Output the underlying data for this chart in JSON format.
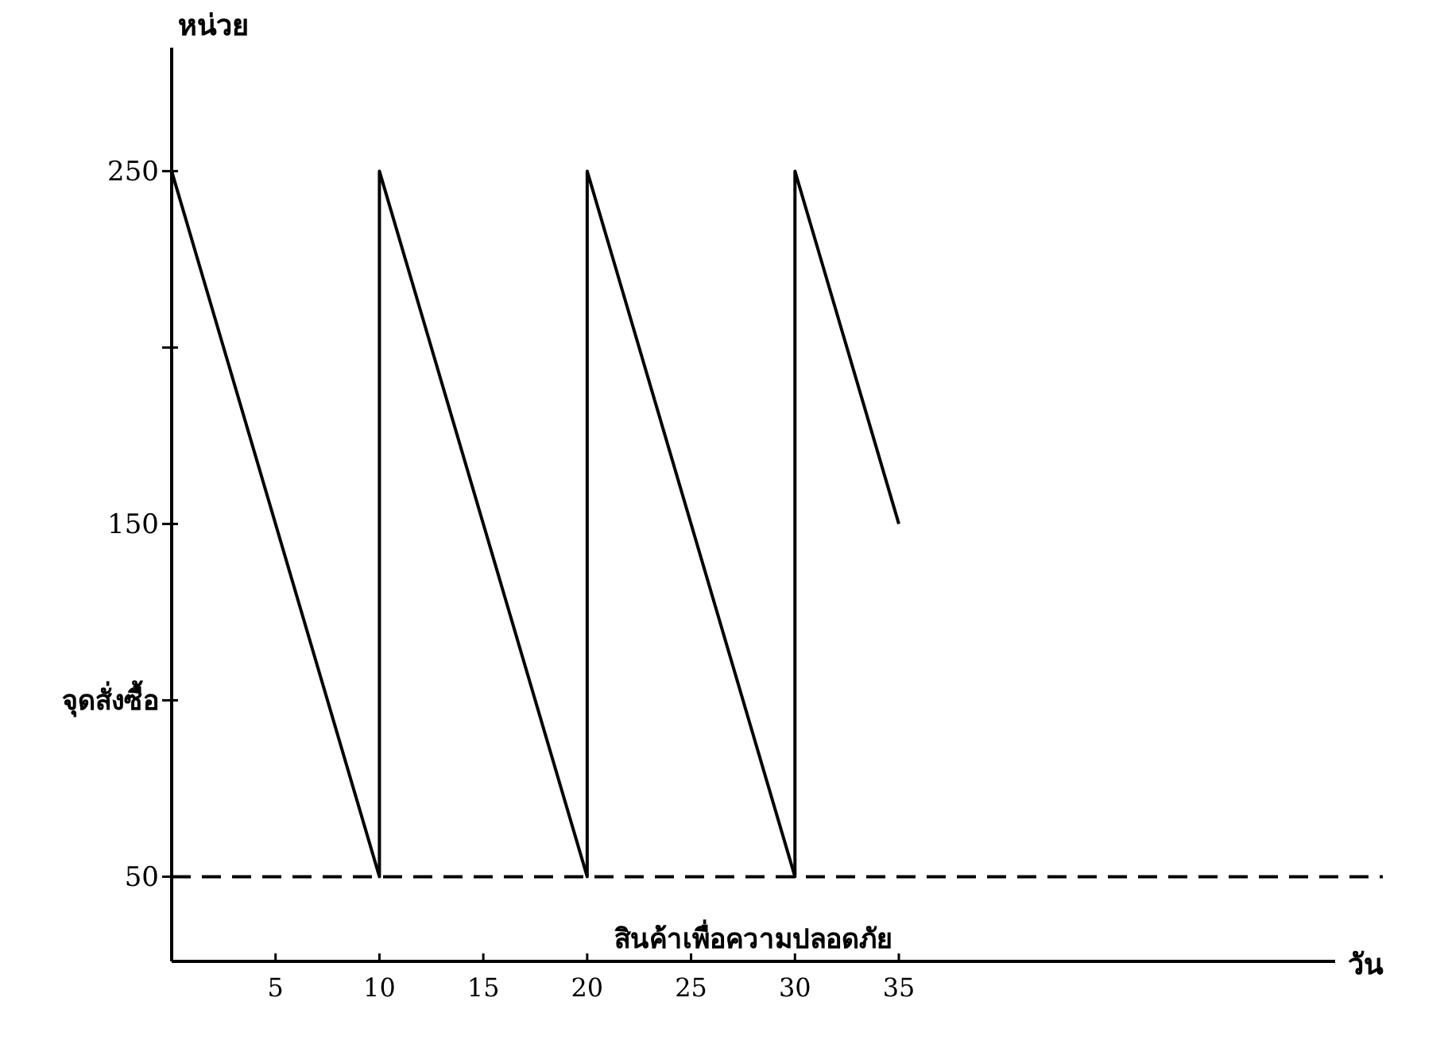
{
  "chart_data": {
    "type": "line",
    "xlabel": "วัน",
    "ylabel": "หน่วย",
    "x": [
      0,
      10,
      10,
      20,
      20,
      30,
      30,
      35
    ],
    "values": [
      250,
      50,
      250,
      50,
      250,
      50,
      250,
      150
    ],
    "color": "#000000",
    "line_style": "solid",
    "marker": "none",
    "xlim": [
      0,
      56
    ],
    "ylim": [
      26,
      285
    ],
    "xticks": [
      5,
      10,
      15,
      20,
      25,
      30,
      35
    ],
    "yticks": [
      50,
      {
        "value": 100,
        "label": "จุดสั่งซื้อ"
      },
      150,
      {
        "value": 200,
        "label": null
      },
      250
    ],
    "ref_lines": [
      {
        "axis": "y",
        "value": 50,
        "label": "สินค้าเพื่อความปลอดภัย",
        "line_style": "dashed",
        "color": "#000000"
      }
    ]
  }
}
